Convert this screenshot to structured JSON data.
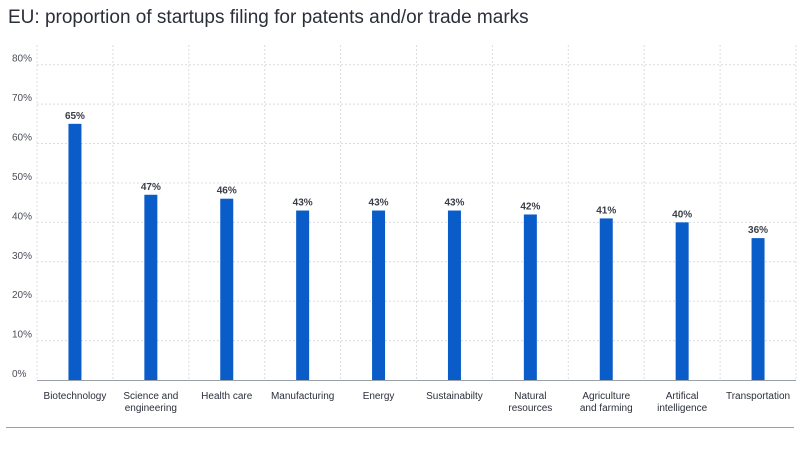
{
  "chart_data": {
    "type": "bar",
    "title": "EU: proportion of startups filing for patents and/or trade marks",
    "categories": [
      "Biotechnology",
      "Science and engineering",
      "Health care",
      "Manufacturing",
      "Energy",
      "Sustainabilty",
      "Natural resources",
      "Agriculture and farming",
      "Artifical intelligence",
      "Transportation"
    ],
    "category_lines": [
      [
        "Biotechnology"
      ],
      [
        "Science and",
        "engineering"
      ],
      [
        "Health care"
      ],
      [
        "Manufacturing"
      ],
      [
        "Energy"
      ],
      [
        "Sustainabilty"
      ],
      [
        "Natural",
        "resources"
      ],
      [
        "Agriculture",
        "and farming"
      ],
      [
        "Artifical",
        "intelligence"
      ],
      [
        "Transportation"
      ]
    ],
    "values": [
      65,
      47,
      46,
      43,
      43,
      43,
      42,
      41,
      40,
      36
    ],
    "data_labels": [
      "65%",
      "47%",
      "46%",
      "43%",
      "43%",
      "43%",
      "42%",
      "41%",
      "40%",
      "36%"
    ],
    "yticks": [
      0,
      10,
      20,
      30,
      40,
      50,
      60,
      70,
      80
    ],
    "ytick_labels": [
      "0%",
      "10%",
      "20%",
      "30%",
      "40%",
      "50%",
      "60%",
      "70%",
      "80%"
    ],
    "ylim": [
      0,
      85
    ],
    "grid": true,
    "bar_color": "#0a5cc8",
    "grid_color": "#d9dce0",
    "axis_color": "#9aa0a8"
  }
}
